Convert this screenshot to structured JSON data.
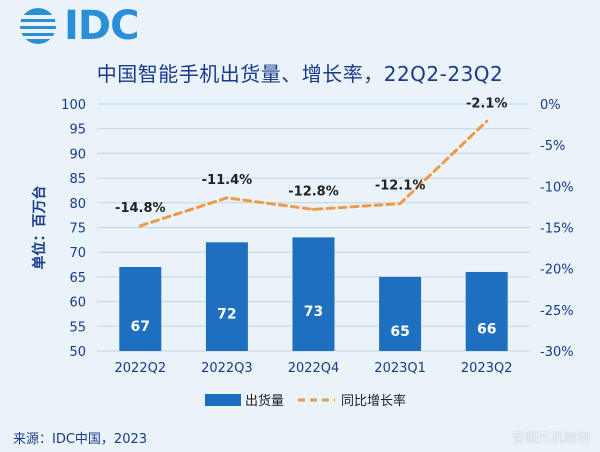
{
  "logo": {
    "text": "IDC"
  },
  "source": "来源：IDC中国，2023",
  "watermark": "音频元机绘制",
  "colors": {
    "bar": "#1f6fc1",
    "line": "#ef9a4a",
    "text": "#1b3a8f",
    "grid": "#c6d3de"
  },
  "chart_data": {
    "type": "bar",
    "title": "中国智能手机出货量、增长率，22Q2-23Q2",
    "ylabel": "单位：百万台",
    "categories": [
      "2022Q2",
      "2022Q3",
      "2022Q4",
      "2023Q1",
      "2023Q2"
    ],
    "series": [
      {
        "name": "出货量",
        "type": "bar",
        "axis": "left",
        "values": [
          67,
          72,
          73,
          65,
          66
        ]
      },
      {
        "name": "同比增长率",
        "type": "line",
        "style": "dashed",
        "axis": "right",
        "values": [
          -14.8,
          -11.4,
          -12.8,
          -12.1,
          -2.1
        ]
      }
    ],
    "bar_labels": [
      "67",
      "72",
      "73",
      "65",
      "66"
    ],
    "line_labels": [
      "-14.8%",
      "-11.4%",
      "-12.8%",
      "-12.1%",
      "-2.1%"
    ],
    "ylim": [
      50,
      100
    ],
    "yticks": [
      "100",
      "95",
      "90",
      "85",
      "80",
      "75",
      "70",
      "65",
      "60",
      "55",
      "50"
    ],
    "y2lim": [
      -30,
      0
    ],
    "y2ticks": [
      "0%",
      "-5%",
      "-10%",
      "-15%",
      "-20%",
      "-25%",
      "-30%"
    ],
    "grid": true,
    "legend_position": "bottom"
  }
}
